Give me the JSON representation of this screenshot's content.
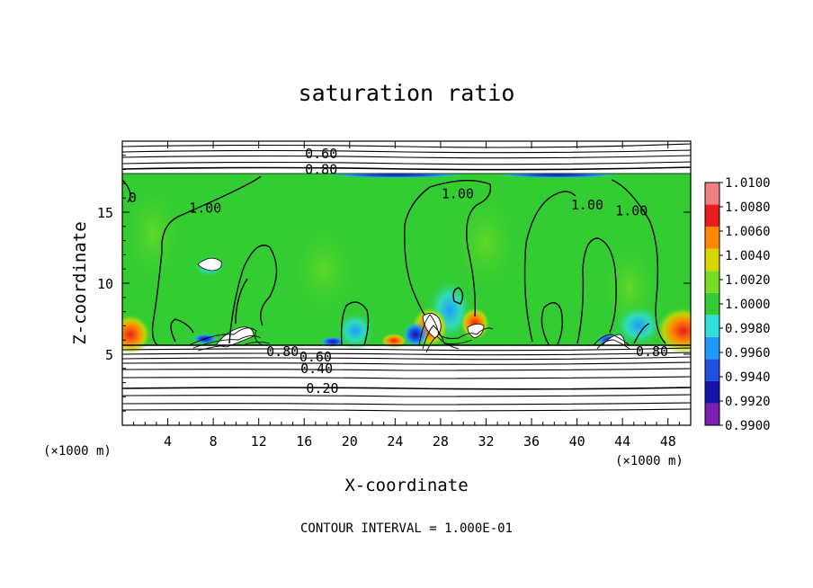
{
  "chart_data": {
    "type": "heatmap",
    "title": "saturation ratio",
    "xlabel": "X-coordinate",
    "ylabel": "Z-coordinate",
    "x_unit_label": "(×1000 m)",
    "y_unit_label": "(×1000 m)",
    "footer": "CONTOUR INTERVAL = 1.000E-01",
    "xlim": [
      0,
      50
    ],
    "ylim": [
      0,
      20
    ],
    "x_ticks": [
      4,
      8,
      12,
      16,
      20,
      24,
      28,
      32,
      36,
      40,
      44,
      48
    ],
    "y_ticks": [
      5,
      10,
      15
    ],
    "colorbar": {
      "levels": [
        0.99,
        0.992,
        0.994,
        0.996,
        0.998,
        1.0,
        1.002,
        1.004,
        1.006,
        1.008,
        1.01
      ],
      "labels": [
        "0.9900",
        "0.9920",
        "0.9940",
        "0.9960",
        "0.9980",
        "1.0000",
        "1.0020",
        "1.0040",
        "1.0060",
        "1.0080",
        "1.0100"
      ],
      "colors": [
        "#7a1fb0",
        "#1414a8",
        "#1e4fe0",
        "#1e9aff",
        "#2ee0d8",
        "#33cc33",
        "#77dd22",
        "#d8d800",
        "#ff8800",
        "#e81e1e",
        "#f08080"
      ]
    },
    "contour_labels": [
      {
        "text": "0.60",
        "x": 17.5,
        "z": 19.1
      },
      {
        "text": "0.80",
        "x": 17.5,
        "z": 18.0
      },
      {
        "text": "1.00",
        "x": 7.3,
        "z": 15.3
      },
      {
        "text": "1.00",
        "x": 29.5,
        "z": 16.3
      },
      {
        "text": "1.00",
        "x": 40.9,
        "z": 15.5
      },
      {
        "text": "1.00",
        "x": 44.8,
        "z": 15.1
      },
      {
        "text": "0",
        "x": 0.9,
        "z": 16.0
      },
      {
        "text": "0.80",
        "x": 14.1,
        "z": 5.2
      },
      {
        "text": "0.60",
        "x": 17.0,
        "z": 4.8
      },
      {
        "text": "0.40",
        "x": 17.1,
        "z": 4.0
      },
      {
        "text": "0.20",
        "x": 17.6,
        "z": 2.6
      },
      {
        "text": "0.80",
        "x": 46.6,
        "z": 5.2
      }
    ]
  }
}
